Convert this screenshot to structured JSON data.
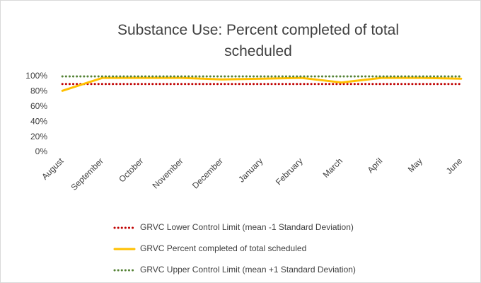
{
  "chart_data": {
    "type": "line",
    "title": "Substance Use: Percent completed of total scheduled",
    "categories": [
      "August",
      "September",
      "October",
      "November",
      "December",
      "January",
      "February",
      "March",
      "April",
      "May",
      "June"
    ],
    "series": [
      {
        "name": "GRVC Lower Control Limit (mean -1 Standard Deviation)",
        "color": "#c00000",
        "style": "dotted",
        "values": [
          90,
          90,
          90,
          90,
          90,
          90,
          90,
          90,
          90,
          90,
          90
        ]
      },
      {
        "name": "GRVC Percent completed of total scheduled",
        "color": "#ffc000",
        "style": "solid",
        "values": [
          81,
          98,
          98,
          98,
          96,
          97,
          98,
          92,
          98,
          98,
          97
        ]
      },
      {
        "name": "GRVC Upper Control Limit (mean +1 Standard Deviation)",
        "color": "#548235",
        "style": "dotted",
        "values": [
          100,
          100,
          100,
          100,
          100,
          100,
          100,
          100,
          100,
          100,
          100
        ]
      }
    ],
    "ylim": [
      0,
      100
    ],
    "yticks": [
      {
        "value": 0,
        "label": "0%"
      },
      {
        "value": 20,
        "label": "20%"
      },
      {
        "value": 40,
        "label": "40%"
      },
      {
        "value": 60,
        "label": "60%"
      },
      {
        "value": 80,
        "label": "80%"
      },
      {
        "value": 100,
        "label": "100%"
      }
    ],
    "legend": "bottom"
  }
}
